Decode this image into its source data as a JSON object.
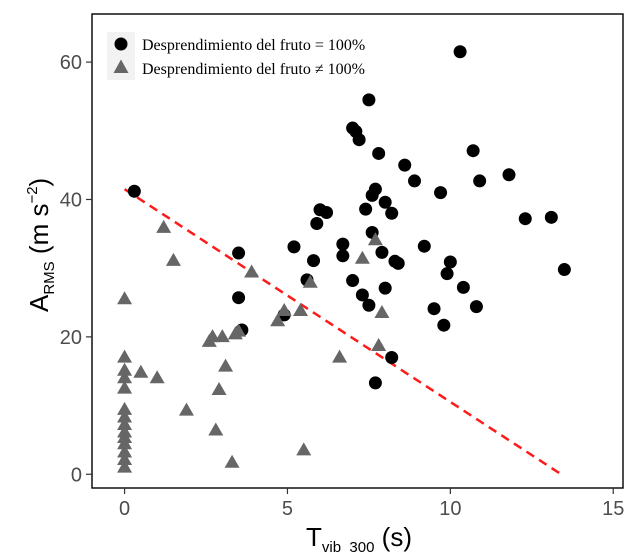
{
  "chart_data": {
    "type": "scatter",
    "title": "",
    "xlabel": {
      "main": "T",
      "sub": "vib_300",
      "unit": " (s)"
    },
    "ylabel": {
      "main": "A",
      "sub": "RMS",
      "unit_open": " (m s",
      "sup": "−2",
      "unit_close": ")"
    },
    "xlim": [
      -1,
      15.3
    ],
    "ylim": [
      -2,
      67
    ],
    "x_ticks": [
      0,
      5,
      10,
      15
    ],
    "y_ticks": [
      0,
      20,
      40,
      60
    ],
    "grid": false,
    "legend_position": "top-left",
    "series": [
      {
        "name": "Desprendimiento del fruto = 100%",
        "marker": "circle",
        "color": "#000000",
        "points": [
          [
            0.3,
            41.2
          ],
          [
            3.5,
            32.2
          ],
          [
            3.6,
            21.0
          ],
          [
            3.5,
            25.7
          ],
          [
            4.9,
            23.2
          ],
          [
            5.2,
            33.1
          ],
          [
            5.6,
            28.3
          ],
          [
            5.8,
            31.1
          ],
          [
            5.9,
            36.5
          ],
          [
            6.0,
            38.5
          ],
          [
            6.2,
            38.1
          ],
          [
            6.7,
            33.5
          ],
          [
            6.7,
            31.8
          ],
          [
            7.0,
            50.4
          ],
          [
            7.0,
            28.2
          ],
          [
            7.1,
            49.9
          ],
          [
            7.2,
            48.7
          ],
          [
            7.3,
            26.1
          ],
          [
            7.4,
            38.6
          ],
          [
            7.5,
            24.6
          ],
          [
            7.5,
            54.5
          ],
          [
            7.6,
            35.2
          ],
          [
            7.6,
            40.6
          ],
          [
            7.7,
            41.5
          ],
          [
            7.7,
            13.3
          ],
          [
            7.8,
            46.7
          ],
          [
            7.9,
            32.3
          ],
          [
            8.0,
            39.6
          ],
          [
            8.0,
            27.1
          ],
          [
            8.2,
            17.0
          ],
          [
            8.2,
            38.0
          ],
          [
            8.3,
            31.0
          ],
          [
            8.4,
            30.7
          ],
          [
            8.6,
            45.0
          ],
          [
            8.9,
            42.7
          ],
          [
            9.2,
            33.2
          ],
          [
            9.5,
            24.1
          ],
          [
            9.7,
            41.0
          ],
          [
            9.8,
            21.7
          ],
          [
            9.9,
            29.2
          ],
          [
            10.0,
            30.9
          ],
          [
            10.3,
            61.5
          ],
          [
            10.4,
            27.2
          ],
          [
            10.7,
            47.1
          ],
          [
            10.8,
            24.4
          ],
          [
            10.9,
            42.7
          ],
          [
            11.8,
            43.6
          ],
          [
            12.3,
            37.2
          ],
          [
            13.1,
            37.4
          ],
          [
            13.5,
            29.8
          ]
        ]
      },
      {
        "name": "Desprendimiento del fruto ≠ 100%",
        "marker": "triangle",
        "color": "#666666",
        "points": [
          [
            0.0,
            25.5
          ],
          [
            0.0,
            17.0
          ],
          [
            0.0,
            15.1
          ],
          [
            0.0,
            14.0
          ],
          [
            0.0,
            12.5
          ],
          [
            0.0,
            9.4
          ],
          [
            0.0,
            8.3
          ],
          [
            0.0,
            7.2
          ],
          [
            0.0,
            6.1
          ],
          [
            0.0,
            5.3
          ],
          [
            0.0,
            4.4
          ],
          [
            0.0,
            3.2
          ],
          [
            0.0,
            2.1
          ],
          [
            0.0,
            1.0
          ],
          [
            0.5,
            14.8
          ],
          [
            1.0,
            14.0
          ],
          [
            1.2,
            35.9
          ],
          [
            1.5,
            31.1
          ],
          [
            1.9,
            9.3
          ],
          [
            2.6,
            19.3
          ],
          [
            2.7,
            20.0
          ],
          [
            2.8,
            6.4
          ],
          [
            2.9,
            12.3
          ],
          [
            3.0,
            20.0
          ],
          [
            3.1,
            15.7
          ],
          [
            3.3,
            1.7
          ],
          [
            3.4,
            20.4
          ],
          [
            3.5,
            20.8
          ],
          [
            3.9,
            29.4
          ],
          [
            4.7,
            22.3
          ],
          [
            4.9,
            23.8
          ],
          [
            5.4,
            23.8
          ],
          [
            5.5,
            3.5
          ],
          [
            5.7,
            27.9
          ],
          [
            6.6,
            17.0
          ],
          [
            7.3,
            31.4
          ],
          [
            7.7,
            34.1
          ],
          [
            7.8,
            18.7
          ],
          [
            7.9,
            23.5
          ]
        ]
      }
    ],
    "reference_line": {
      "style": "dashed",
      "color": "#ff1a1a",
      "from": [
        0,
        41.5
      ],
      "to": [
        13.4,
        0
      ]
    }
  }
}
